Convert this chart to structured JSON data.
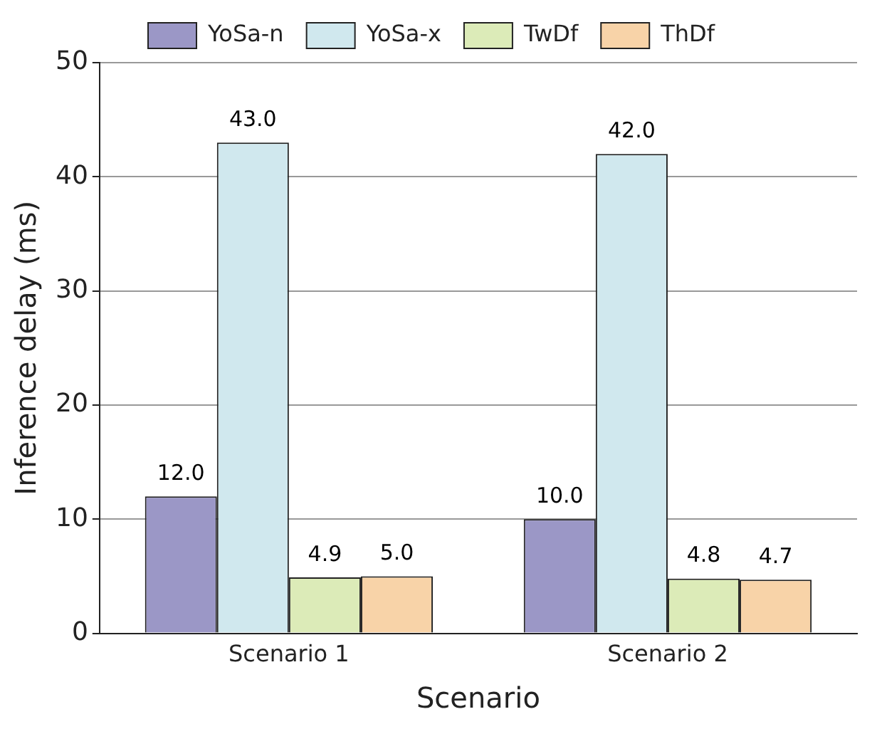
{
  "chart_data": {
    "type": "bar",
    "xlabel": "Scenario",
    "ylabel": "Inference delay (ms)",
    "categories": [
      "Scenario 1",
      "Scenario 2"
    ],
    "series": [
      {
        "name": "YoSa-n",
        "color": "#9b97c6",
        "values": [
          12.0,
          10.0
        ],
        "value_labels": [
          "12.0",
          "10.0"
        ]
      },
      {
        "name": "YoSa-x",
        "color": "#d0e8ee",
        "values": [
          43.0,
          42.0
        ],
        "value_labels": [
          "43.0",
          "42.0"
        ]
      },
      {
        "name": "TwDf",
        "color": "#dcebb8",
        "values": [
          4.9,
          4.8
        ],
        "value_labels": [
          "4.9",
          "4.8"
        ]
      },
      {
        "name": "ThDf",
        "color": "#f8d3a8",
        "values": [
          5.0,
          4.7
        ],
        "value_labels": [
          "5.0",
          "4.7"
        ]
      }
    ],
    "ylim": [
      0,
      50
    ],
    "yticks": [
      0,
      10,
      20,
      30,
      40,
      50
    ],
    "grid": "y",
    "legend": "top"
  }
}
